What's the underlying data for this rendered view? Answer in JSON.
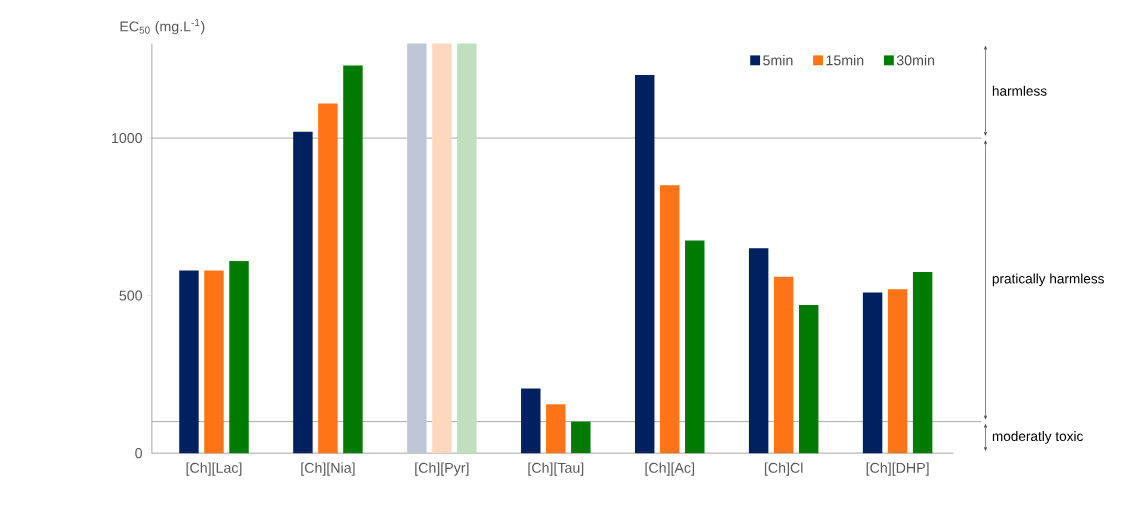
{
  "chart_data": {
    "type": "bar",
    "ylabel": "EC$_{50}$ (mg.L$^{-1}$)",
    "categories": [
      "[Ch][Lac]",
      "[Ch][Nia]",
      "[Ch][Pyr]",
      "[Ch][Tau]",
      "[Ch][Ac]",
      "[Ch]Cl",
      "[Ch][DHP]"
    ],
    "series": [
      {
        "name": "5min",
        "color": "#002060",
        "values": [
          580,
          1020,
          1300,
          205,
          1200,
          650,
          510
        ],
        "colors": [
          "#002060",
          "#002060",
          "#bfc7d7",
          "#002060",
          "#002060",
          "#002060",
          "#002060"
        ]
      },
      {
        "name": "15min",
        "color": "#ff7416",
        "values": [
          580,
          1110,
          1300,
          155,
          850,
          560,
          520
        ],
        "colors": [
          "#ff7416",
          "#ff7416",
          "#fdd8bf",
          "#ff7416",
          "#ff7416",
          "#ff7416",
          "#ff7416"
        ]
      },
      {
        "name": "30min",
        "color": "#007a00",
        "values": [
          610,
          1230,
          1300,
          100,
          675,
          470,
          575
        ],
        "colors": [
          "#007a00",
          "#007a00",
          "#bfdfbf",
          "#007a00",
          "#007a00",
          "#007a00",
          "#007a00"
        ]
      }
    ],
    "ylim": [
      0,
      1300
    ],
    "yticks": [
      0,
      500,
      1000
    ],
    "ref_lines": [
      {
        "axis": "y",
        "value": 1000
      },
      {
        "axis": "y",
        "value": 100
      }
    ],
    "annotations": [
      "harmless",
      "pratically harmless",
      "moderatly toxic"
    ],
    "legend": "top right",
    "grid": false
  }
}
